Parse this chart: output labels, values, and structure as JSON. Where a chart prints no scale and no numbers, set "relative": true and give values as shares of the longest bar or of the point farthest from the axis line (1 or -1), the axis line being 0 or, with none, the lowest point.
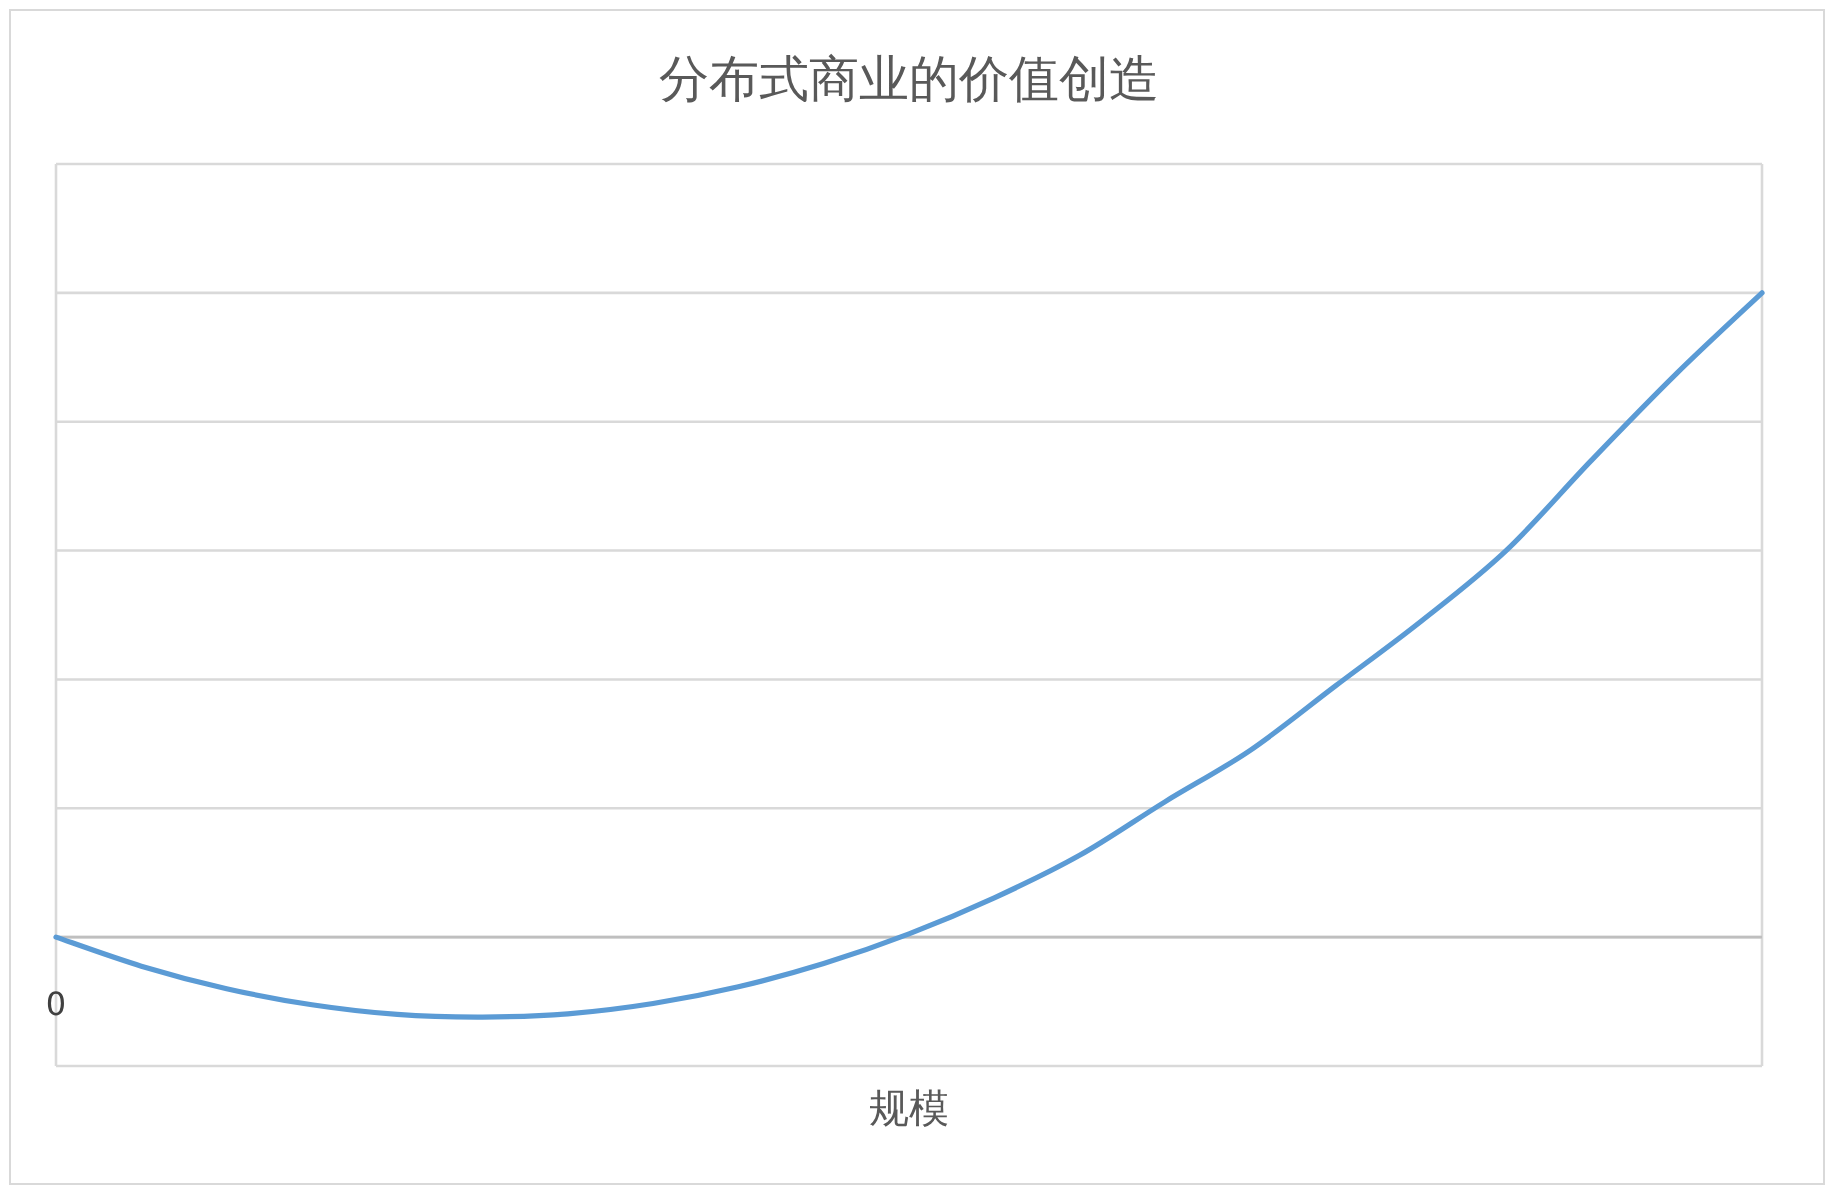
{
  "chart_data": {
    "type": "line",
    "title": "分布式商业的价值创造",
    "xlabel": "规模",
    "relative": true,
    "grid": true,
    "line_style": "solid",
    "annotations": [
      "0"
    ],
    "categories": [
      null,
      null,
      null,
      null,
      null,
      null,
      null,
      null,
      null,
      null,
      null,
      null,
      null,
      null,
      null,
      null,
      null,
      null,
      null,
      null,
      null
    ],
    "series": [
      {
        "color": "#5b9bd5",
        "values": [
          0,
          -0.045,
          -0.08,
          -0.105,
          -0.12,
          -0.124,
          -0.119,
          -0.103,
          -0.077,
          -0.041,
          0.005,
          0.061,
          0.127,
          0.21,
          0.29,
          0.39,
          0.49,
          0.6,
          0.74,
          0.875,
          1
        ]
      }
    ]
  }
}
